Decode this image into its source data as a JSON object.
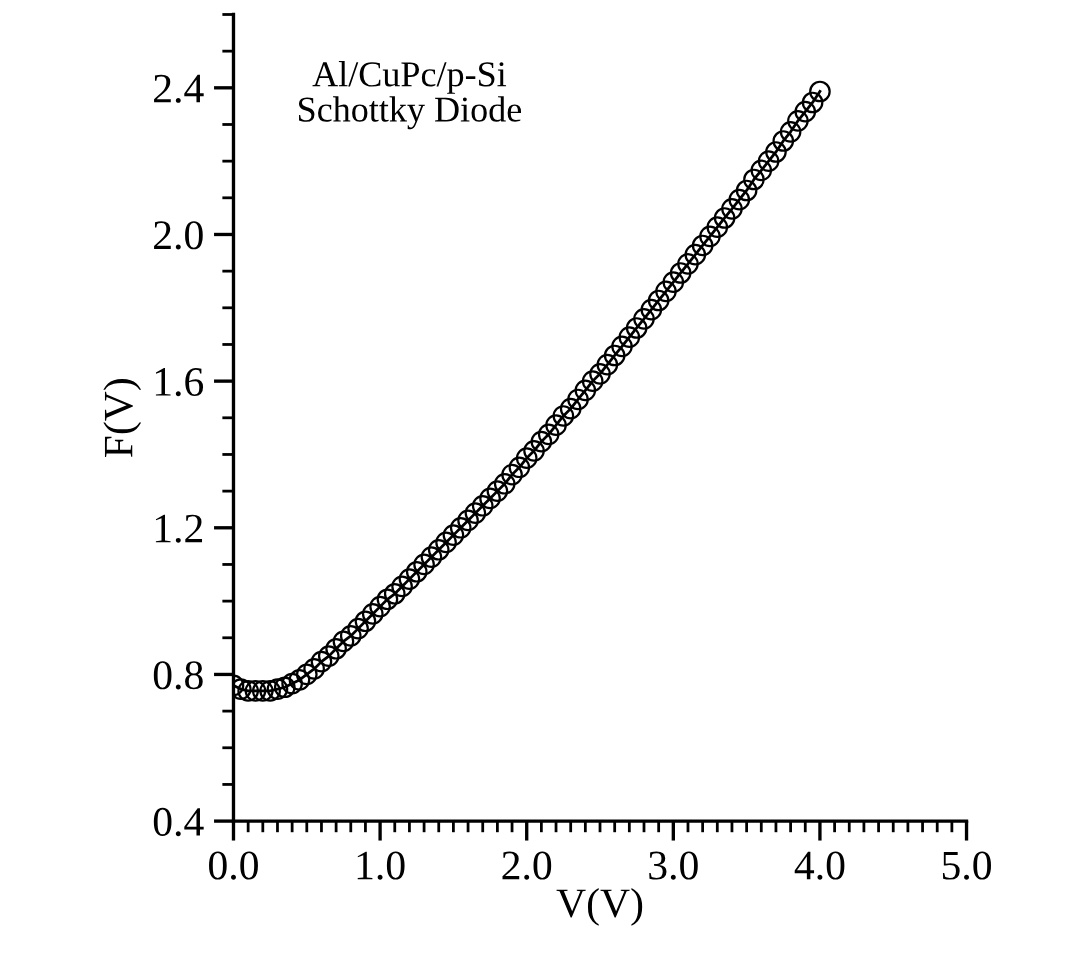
{
  "chart_data": {
    "type": "line",
    "xlabel": "V(V)",
    "ylabel": "F(V)",
    "annotations": [
      "Al/CuPc/p-Si\nSchottky Diode"
    ],
    "xlim": [
      0,
      5
    ],
    "xticks": [
      {
        "value": 0,
        "label": "0.0"
      },
      {
        "value": 1,
        "label": "1.0"
      },
      {
        "value": 2,
        "label": "2.0"
      },
      {
        "value": 3,
        "label": "3.0"
      },
      {
        "value": 4,
        "label": "4.0"
      },
      {
        "value": 5,
        "label": "5.0"
      }
    ],
    "ylim": [
      0.4,
      2.6
    ],
    "yticks": [
      0.4,
      0.8,
      1.2,
      1.6,
      {
        "value": 2.0,
        "label": "2.0"
      },
      2.4
    ],
    "marker": "circle",
    "grid": false,
    "legend": false,
    "x": [
      0,
      0.05,
      0.1,
      0.15,
      0.2,
      0.25,
      0.3,
      0.35,
      0.4,
      0.45,
      0.5,
      0.55,
      0.6,
      0.65,
      0.7,
      0.75,
      0.8,
      0.85,
      0.9,
      0.95,
      1.0,
      1.05,
      1.1,
      1.15,
      1.2,
      1.25,
      1.3,
      1.35,
      1.4,
      1.45,
      1.5,
      1.55,
      1.6,
      1.65,
      1.7,
      1.75,
      1.8,
      1.85,
      1.9,
      1.95,
      2.0,
      2.05,
      2.1,
      2.15,
      2.2,
      2.25,
      2.3,
      2.35,
      2.4,
      2.45,
      2.5,
      2.55,
      2.6,
      2.65,
      2.7,
      2.75,
      2.8,
      2.85,
      2.9,
      2.95,
      3.0,
      3.05,
      3.1,
      3.15,
      3.2,
      3.25,
      3.3,
      3.35,
      3.4,
      3.45,
      3.5,
      3.55,
      3.6,
      3.65,
      3.7,
      3.75,
      3.8,
      3.85,
      3.9,
      3.95,
      4.0
    ],
    "series": [
      {
        "color": "#000000",
        "values": [
          0.77,
          0.76,
          0.755,
          0.755,
          0.755,
          0.755,
          0.76,
          0.765,
          0.775,
          0.785,
          0.8,
          0.815,
          0.835,
          0.85,
          0.87,
          0.89,
          0.905,
          0.925,
          0.945,
          0.965,
          0.985,
          1.005,
          1.02,
          1.04,
          1.06,
          1.08,
          1.1,
          1.12,
          1.14,
          1.16,
          1.18,
          1.2,
          1.22,
          1.24,
          1.26,
          1.28,
          1.3,
          1.32,
          1.345,
          1.365,
          1.39,
          1.41,
          1.435,
          1.455,
          1.48,
          1.505,
          1.525,
          1.55,
          1.575,
          1.6,
          1.62,
          1.645,
          1.67,
          1.695,
          1.72,
          1.745,
          1.77,
          1.795,
          1.82,
          1.845,
          1.87,
          1.895,
          1.92,
          1.945,
          1.97,
          1.995,
          2.02,
          2.045,
          2.07,
          2.095,
          2.12,
          2.15,
          2.175,
          2.2,
          2.225,
          2.255,
          2.28,
          2.31,
          2.335,
          2.36,
          2.39
        ]
      }
    ]
  }
}
